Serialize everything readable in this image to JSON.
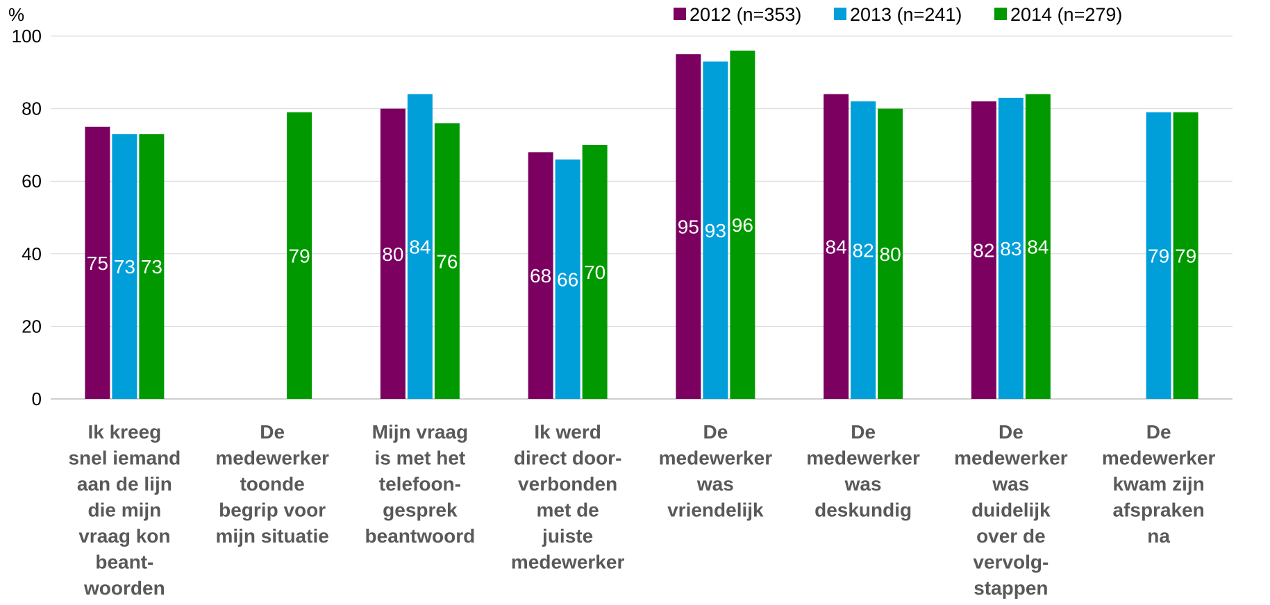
{
  "chart_data": {
    "type": "bar",
    "unit_label": "%",
    "ylim": [
      0,
      100
    ],
    "yticks": [
      0,
      20,
      40,
      60,
      80,
      100
    ],
    "grid": true,
    "legend_position": "top-right",
    "categories": [
      [
        "Ik kreeg",
        "snel iemand",
        "aan de lijn",
        "die mijn",
        "vraag kon",
        "beant-",
        "woorden"
      ],
      [
        "De",
        "medewerker",
        "toonde",
        "begrip voor",
        "mijn situatie"
      ],
      [
        "Mijn vraag",
        "is met het",
        "telefoon-",
        "gesprek",
        "beantwoord"
      ],
      [
        "Ik werd",
        "direct door-",
        "verbonden",
        "met de",
        "juiste",
        "medewerker"
      ],
      [
        "De",
        "medewerker",
        "was",
        "vriendelijk"
      ],
      [
        "De",
        "medewerker",
        "was",
        "deskundig"
      ],
      [
        "De",
        "medewerker",
        "was",
        "duidelijk",
        "over de",
        "vervolg-",
        "stappen"
      ],
      [
        "De",
        "medewerker",
        "kwam zijn",
        "afspraken",
        "na"
      ]
    ],
    "series": [
      {
        "name": "2012 (n=353)",
        "color": "#7B0060",
        "values": [
          75,
          null,
          80,
          68,
          95,
          84,
          82,
          null
        ]
      },
      {
        "name": "2013 (n=241)",
        "color": "#009FDA",
        "values": [
          73,
          null,
          84,
          66,
          93,
          82,
          83,
          79
        ]
      },
      {
        "name": "2014 (n=279)",
        "color": "#009A00",
        "values": [
          73,
          79,
          76,
          70,
          96,
          80,
          84,
          79
        ]
      }
    ]
  }
}
